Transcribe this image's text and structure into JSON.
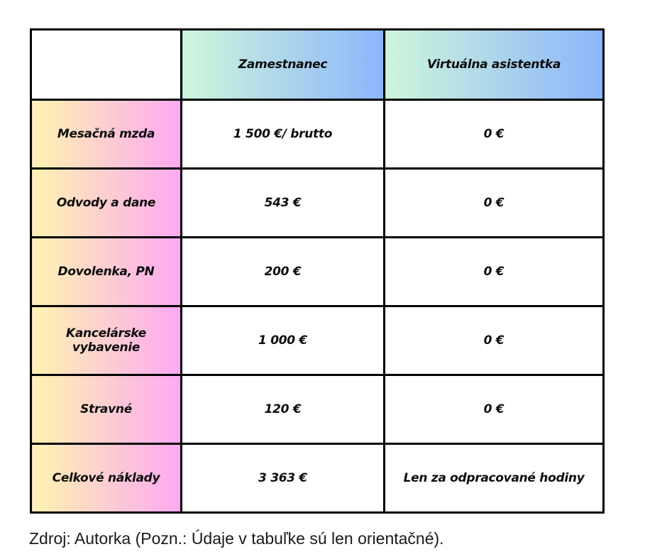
{
  "table": {
    "header": {
      "corner": "",
      "col_employee": "Zamestnanec",
      "col_assistant": "Virtuálna asistentka"
    },
    "rows": [
      {
        "label": "Mesačná mzda",
        "employee": "1 500 €/ brutto",
        "assistant": "0 €"
      },
      {
        "label": "Odvody a dane",
        "employee": "543 €",
        "assistant": "0 €"
      },
      {
        "label": "Dovolenka, PN",
        "employee": "200 €",
        "assistant": "0 €"
      },
      {
        "label": "Kancelárske vybavenie",
        "employee": "1 000 €",
        "assistant": "0 €"
      },
      {
        "label": "Stravné",
        "employee": "120 €",
        "assistant": "0 €"
      },
      {
        "label": "Celkové náklady",
        "employee": "3 363 €",
        "assistant": "Len za odpracované hodiny"
      }
    ],
    "source_note": "Zdroj: Autorka (Pozn.: Údaje v tabuľke sú len orientačné).",
    "colors": {
      "header_gradient_start": "#cdf6da",
      "header_gradient_end": "#8db5fc",
      "label_gradient_start": "#fdf3b1",
      "label_gradient_end": "#fda9f2",
      "border": "#000000",
      "cell_text": "#0d0d0d",
      "note_text": "#1a1a1a"
    }
  }
}
